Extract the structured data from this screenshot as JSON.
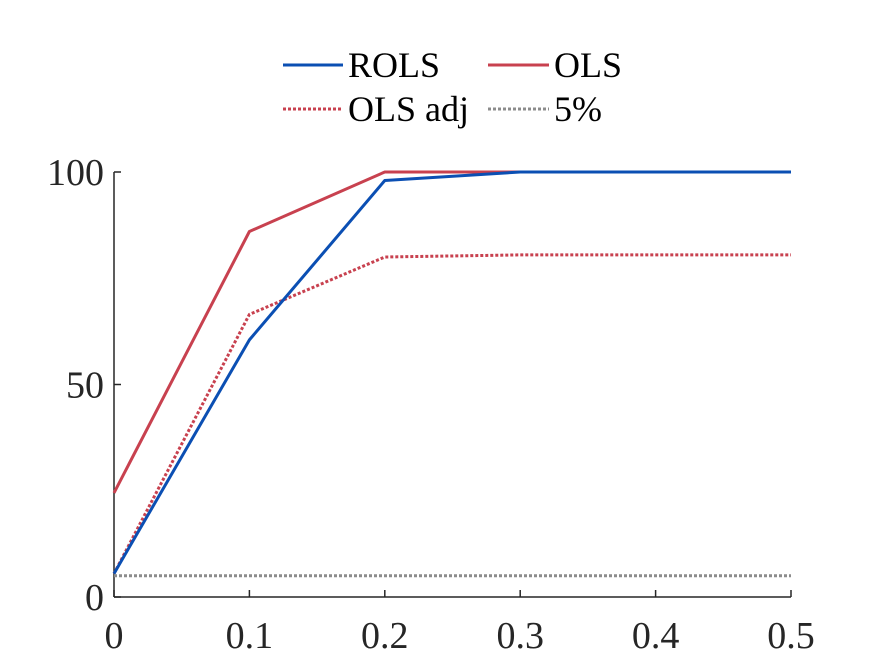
{
  "chart_data": {
    "type": "line",
    "title": "",
    "xlabel": "",
    "ylabel": "",
    "xlim": [
      0,
      0.5
    ],
    "ylim": [
      0,
      100
    ],
    "x": [
      0,
      0.1,
      0.2,
      0.3,
      0.4,
      0.5
    ],
    "xticks": [
      0,
      0.1,
      0.2,
      0.3,
      0.4,
      0.5
    ],
    "xtick_labels": [
      "0",
      "0.1",
      "0.2",
      "0.3",
      "0.4",
      "0.5"
    ],
    "yticks": [
      0,
      50,
      100
    ],
    "ytick_labels": [
      "0",
      "50",
      "100"
    ],
    "grid": false,
    "legend_position": "top",
    "series": [
      {
        "name": "ROLS",
        "color": "#0b4fb3",
        "dash": "solid",
        "values": [
          5.5,
          60.5,
          98.0,
          100,
          100,
          100
        ]
      },
      {
        "name": "OLS",
        "color": "#c8414f",
        "dash": "solid",
        "values": [
          24.5,
          86.0,
          100,
          100,
          100,
          100
        ]
      },
      {
        "name": "OLS adj",
        "color": "#c8414f",
        "dash": "dotted",
        "values": [
          5.5,
          66.5,
          80.0,
          80.5,
          80.5,
          80.5
        ]
      },
      {
        "name": "5%",
        "color": "#8c8c8c",
        "dash": "dotted",
        "values": [
          5,
          5,
          5,
          5,
          5,
          5
        ]
      }
    ]
  }
}
